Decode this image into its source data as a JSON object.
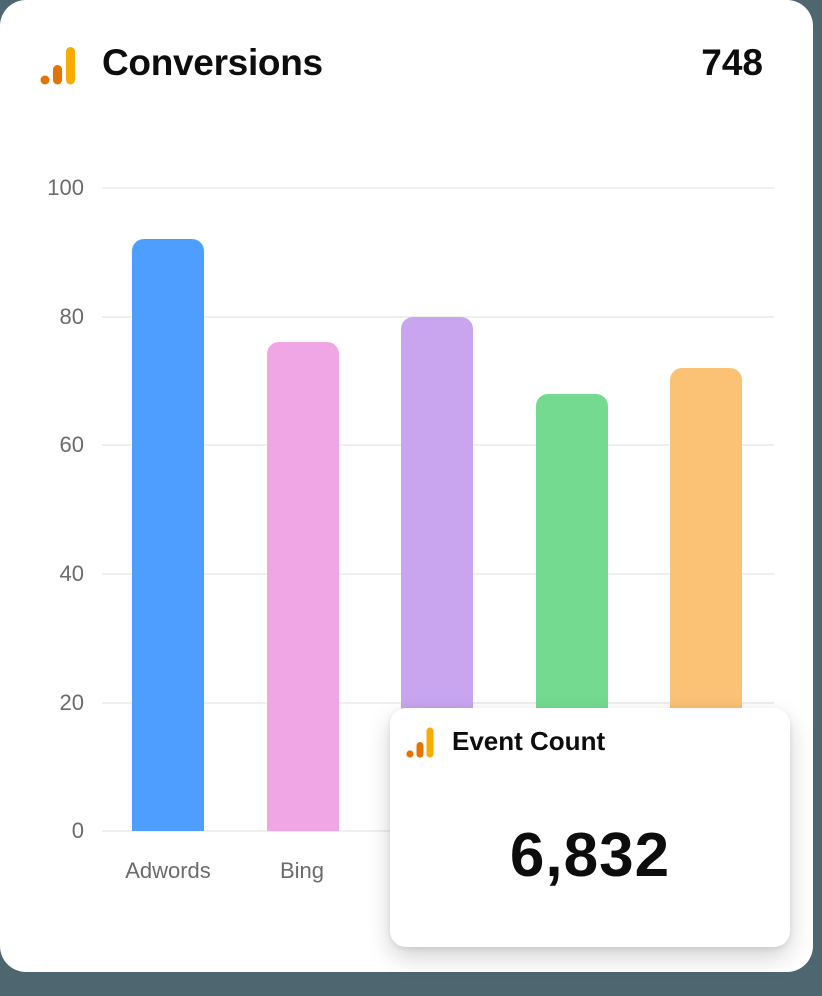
{
  "header": {
    "title": "Conversions",
    "total": "748",
    "icon": "analytics-bars-icon"
  },
  "overlay": {
    "title": "Event Count",
    "value": "6,832",
    "icon": "analytics-bars-icon"
  },
  "colors": {
    "background": "#4d6670",
    "card": "#ffffff",
    "icon_dark_orange": "#e37400",
    "icon_light_orange": "#f9ab00",
    "grid": "#efefef",
    "axis_text": "#6b6b6b"
  },
  "chart_data": {
    "type": "bar",
    "title": "Conversions",
    "categories": [
      "Adwords",
      "Bing",
      "",
      "",
      ""
    ],
    "visible_tick_labels": [
      "Adwords",
      "Bing"
    ],
    "values": [
      92,
      76,
      80,
      68,
      72
    ],
    "colors": [
      "#4d9eff",
      "#f0a5e4",
      "#c9a5f0",
      "#74da8f",
      "#fbc276"
    ],
    "xlabel": "",
    "ylabel": "",
    "ylim": [
      0,
      100
    ],
    "yticks": [
      0,
      20,
      40,
      60,
      80,
      100
    ],
    "grid": true,
    "legend": null,
    "note": "Labels for bars 3-5 are hidden behind the Event Count overlay card"
  },
  "axis": {
    "y_labels": [
      "100",
      "80",
      "60",
      "40",
      "20",
      "0"
    ],
    "x_labels": [
      "Adwords",
      "Bing"
    ]
  }
}
